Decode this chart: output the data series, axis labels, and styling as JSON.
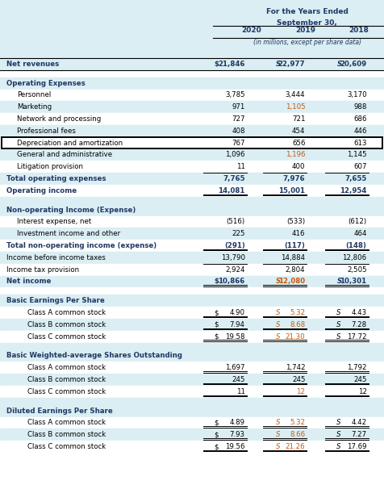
{
  "title_line1": "For the Years Ended",
  "title_line2": "September 30,",
  "subtitle": "(in millions, except per share data)",
  "years": [
    "2020",
    "2019",
    "2018"
  ],
  "bg_blue": "#daeef3",
  "bg_white": "#ffffff",
  "tc_dark": "#1f3864",
  "tc_black": "#000000",
  "tc_orange": "#c55a11",
  "rows": [
    {
      "label": "Net revenues",
      "v0": "$ 21,846",
      "v1": "S  22,977",
      "v2": "S  20,609",
      "bold": true,
      "bg": "blue",
      "indent": 0,
      "box": false,
      "du": false,
      "su": false,
      "spacer": false,
      "sec": false,
      "top_rule": true,
      "bot_rule": true,
      "or1": false,
      "dollar": true,
      "du_cols": []
    },
    {
      "label": "",
      "v0": "",
      "v1": "",
      "v2": "",
      "bold": false,
      "bg": "white",
      "indent": 0,
      "box": false,
      "du": false,
      "su": false,
      "spacer": true,
      "sec": false,
      "top_rule": false,
      "bot_rule": false,
      "or1": false,
      "dollar": false,
      "du_cols": []
    },
    {
      "label": "Operating Expenses",
      "v0": "",
      "v1": "",
      "v2": "",
      "bold": true,
      "bg": "blue",
      "indent": 0,
      "box": false,
      "du": false,
      "su": false,
      "spacer": false,
      "sec": true,
      "top_rule": false,
      "bot_rule": false,
      "or1": false,
      "dollar": false,
      "du_cols": []
    },
    {
      "label": "Personnel",
      "v0": "3,785",
      "v1": "3,444",
      "v2": "3,170",
      "bold": false,
      "bg": "white",
      "indent": 1,
      "box": false,
      "du": false,
      "su": false,
      "spacer": false,
      "sec": false,
      "top_rule": false,
      "bot_rule": false,
      "or1": false,
      "dollar": false,
      "du_cols": []
    },
    {
      "label": "Marketing",
      "v0": "971",
      "v1": "1,105",
      "v2": "988",
      "bold": false,
      "bg": "blue",
      "indent": 1,
      "box": false,
      "du": false,
      "su": false,
      "spacer": false,
      "sec": false,
      "top_rule": false,
      "bot_rule": false,
      "or1": true,
      "dollar": false,
      "du_cols": []
    },
    {
      "label": "Network and processing",
      "v0": "727",
      "v1": "721",
      "v2": "686",
      "bold": false,
      "bg": "white",
      "indent": 1,
      "box": false,
      "du": false,
      "su": false,
      "spacer": false,
      "sec": false,
      "top_rule": false,
      "bot_rule": false,
      "or1": false,
      "dollar": false,
      "du_cols": []
    },
    {
      "label": "Professional fees",
      "v0": "408",
      "v1": "454",
      "v2": "446",
      "bold": false,
      "bg": "blue",
      "indent": 1,
      "box": false,
      "du": false,
      "su": false,
      "spacer": false,
      "sec": false,
      "top_rule": false,
      "bot_rule": false,
      "or1": false,
      "dollar": false,
      "du_cols": []
    },
    {
      "label": "Depreciation and amortization",
      "v0": "767",
      "v1": "656",
      "v2": "613",
      "bold": false,
      "bg": "white",
      "indent": 1,
      "box": true,
      "du": false,
      "su": false,
      "spacer": false,
      "sec": false,
      "top_rule": false,
      "bot_rule": false,
      "or1": false,
      "dollar": false,
      "du_cols": []
    },
    {
      "label": "General and administrative",
      "v0": "1,096",
      "v1": "1,196",
      "v2": "1,145",
      "bold": false,
      "bg": "blue",
      "indent": 1,
      "box": false,
      "du": false,
      "su": false,
      "spacer": false,
      "sec": false,
      "top_rule": false,
      "bot_rule": false,
      "or1": true,
      "dollar": false,
      "du_cols": []
    },
    {
      "label": "Litigation provision",
      "v0": "11",
      "v1": "400",
      "v2": "607",
      "bold": false,
      "bg": "white",
      "indent": 1,
      "box": false,
      "du": false,
      "su": false,
      "spacer": false,
      "sec": false,
      "top_rule": false,
      "bot_rule": false,
      "or1": false,
      "dollar": false,
      "du_cols": []
    },
    {
      "label": "Total operating expenses",
      "v0": "7,765",
      "v1": "7,976",
      "v2": "7,655",
      "bold": true,
      "bg": "blue",
      "indent": 0,
      "box": false,
      "du": false,
      "su": true,
      "spacer": false,
      "sec": false,
      "top_rule": false,
      "bot_rule": false,
      "or1": false,
      "dollar": false,
      "du_cols": []
    },
    {
      "label": "Operating income",
      "v0": "14,081",
      "v1": "15,001",
      "v2": "12,954",
      "bold": true,
      "bg": "white",
      "indent": 0,
      "box": false,
      "du": true,
      "su": false,
      "spacer": false,
      "sec": false,
      "top_rule": false,
      "bot_rule": false,
      "or1": false,
      "dollar": false,
      "du_cols": [
        0,
        1,
        2
      ]
    },
    {
      "label": "",
      "v0": "",
      "v1": "",
      "v2": "",
      "bold": false,
      "bg": "blue",
      "indent": 0,
      "box": false,
      "du": false,
      "su": false,
      "spacer": true,
      "sec": false,
      "top_rule": false,
      "bot_rule": false,
      "or1": false,
      "dollar": false,
      "du_cols": []
    },
    {
      "label": "Non-operating Income (Expense)",
      "v0": "",
      "v1": "",
      "v2": "",
      "bold": true,
      "bg": "blue",
      "indent": 0,
      "box": false,
      "du": false,
      "su": false,
      "spacer": false,
      "sec": true,
      "top_rule": false,
      "bot_rule": false,
      "or1": false,
      "dollar": false,
      "du_cols": []
    },
    {
      "label": "Interest expense, net",
      "v0": "(516)",
      "v1": "(533)",
      "v2": "(612)",
      "bold": false,
      "bg": "white",
      "indent": 1,
      "box": false,
      "du": false,
      "su": false,
      "spacer": false,
      "sec": false,
      "top_rule": false,
      "bot_rule": false,
      "or1": false,
      "dollar": false,
      "du_cols": []
    },
    {
      "label": "Investment income and other",
      "v0": "225",
      "v1": "416",
      "v2": "464",
      "bold": false,
      "bg": "blue",
      "indent": 1,
      "box": false,
      "du": false,
      "su": false,
      "spacer": false,
      "sec": false,
      "top_rule": false,
      "bot_rule": false,
      "or1": false,
      "dollar": false,
      "du_cols": []
    },
    {
      "label": "Total non-operating income (expense)",
      "v0": "(291)",
      "v1": "(117)",
      "v2": "(148)",
      "bold": true,
      "bg": "white",
      "indent": 0,
      "box": false,
      "du": true,
      "su": false,
      "spacer": false,
      "sec": false,
      "top_rule": false,
      "bot_rule": false,
      "or1": false,
      "dollar": false,
      "du_cols": [
        0,
        1,
        2
      ]
    },
    {
      "label": "Income before income taxes",
      "v0": "13,790",
      "v1": "14,884",
      "v2": "12,806",
      "bold": false,
      "bg": "blue",
      "indent": 0,
      "box": false,
      "du": false,
      "su": false,
      "spacer": false,
      "sec": false,
      "top_rule": false,
      "bot_rule": false,
      "or1": false,
      "dollar": false,
      "du_cols": []
    },
    {
      "label": "Income tax provision",
      "v0": "2,924",
      "v1": "2,804",
      "v2": "2,505",
      "bold": false,
      "bg": "white",
      "indent": 0,
      "box": false,
      "du": false,
      "su": true,
      "spacer": false,
      "sec": false,
      "top_rule": false,
      "bot_rule": false,
      "or1": false,
      "dollar": false,
      "du_cols": []
    },
    {
      "label": "Net income",
      "v0": "$ 10,866",
      "v1": "S  12,080",
      "v2": "S  10,301",
      "bold": true,
      "bg": "blue",
      "indent": 0,
      "box": false,
      "du": true,
      "su": false,
      "spacer": false,
      "sec": false,
      "top_rule": false,
      "bot_rule": false,
      "or1": true,
      "dollar": true,
      "du_cols": [
        0,
        1,
        2
      ]
    },
    {
      "label": "",
      "v0": "",
      "v1": "",
      "v2": "",
      "bold": false,
      "bg": "white",
      "indent": 0,
      "box": false,
      "du": false,
      "su": false,
      "spacer": true,
      "sec": false,
      "top_rule": false,
      "bot_rule": false,
      "or1": false,
      "dollar": false,
      "du_cols": []
    },
    {
      "label": "Basic Earnings Per Share",
      "v0": "",
      "v1": "",
      "v2": "",
      "bold": true,
      "bg": "blue",
      "indent": 0,
      "box": false,
      "du": false,
      "su": false,
      "spacer": false,
      "sec": true,
      "top_rule": false,
      "bot_rule": false,
      "or1": false,
      "dollar": false,
      "du_cols": []
    },
    {
      "label": "Class A common stock",
      "v0": "$ 4.90",
      "v1": "S  5.32",
      "v2": "S  4.43",
      "bold": false,
      "bg": "white",
      "indent": 2,
      "box": false,
      "du": true,
      "su": false,
      "spacer": false,
      "sec": false,
      "top_rule": false,
      "bot_rule": false,
      "or1": true,
      "dollar": true,
      "du_cols": [
        0,
        1,
        2
      ]
    },
    {
      "label": "Class B common stock",
      "v0": "$ 7.94",
      "v1": "S  8.68",
      "v2": "S  7.28",
      "bold": false,
      "bg": "blue",
      "indent": 2,
      "box": false,
      "du": true,
      "su": false,
      "spacer": false,
      "sec": false,
      "top_rule": false,
      "bot_rule": false,
      "or1": true,
      "dollar": true,
      "du_cols": [
        0,
        1,
        2
      ]
    },
    {
      "label": "Class C common stock",
      "v0": "$ 19.58",
      "v1": "S  21.30",
      "v2": "S  17.72",
      "bold": false,
      "bg": "white",
      "indent": 2,
      "box": false,
      "du": true,
      "su": false,
      "spacer": false,
      "sec": false,
      "top_rule": false,
      "bot_rule": false,
      "or1": true,
      "dollar": true,
      "du_cols": [
        0,
        1,
        2
      ]
    },
    {
      "label": "",
      "v0": "",
      "v1": "",
      "v2": "",
      "bold": false,
      "bg": "blue",
      "indent": 0,
      "box": false,
      "du": false,
      "su": false,
      "spacer": true,
      "sec": false,
      "top_rule": false,
      "bot_rule": false,
      "or1": false,
      "dollar": false,
      "du_cols": []
    },
    {
      "label": "Basic Weighted-average Shares Outstanding",
      "v0": "",
      "v1": "",
      "v2": "",
      "bold": true,
      "bg": "blue",
      "indent": 0,
      "box": false,
      "du": false,
      "su": false,
      "spacer": false,
      "sec": true,
      "top_rule": false,
      "bot_rule": false,
      "or1": false,
      "dollar": false,
      "du_cols": []
    },
    {
      "label": "Class A common stock",
      "v0": "1,697",
      "v1": "1,742",
      "v2": "1,792",
      "bold": false,
      "bg": "white",
      "indent": 2,
      "box": false,
      "du": true,
      "su": false,
      "spacer": false,
      "sec": false,
      "top_rule": false,
      "bot_rule": false,
      "or1": false,
      "dollar": false,
      "du_cols": [
        0,
        1,
        2
      ]
    },
    {
      "label": "Class B common stock",
      "v0": "245",
      "v1": "245",
      "v2": "245",
      "bold": false,
      "bg": "blue",
      "indent": 2,
      "box": false,
      "du": true,
      "su": false,
      "spacer": false,
      "sec": false,
      "top_rule": false,
      "bot_rule": false,
      "or1": false,
      "dollar": false,
      "du_cols": [
        0,
        1,
        2
      ]
    },
    {
      "label": "Class C common stock",
      "v0": "11",
      "v1": "12",
      "v2": "12",
      "bold": false,
      "bg": "white",
      "indent": 2,
      "box": false,
      "du": true,
      "su": false,
      "spacer": false,
      "sec": false,
      "top_rule": false,
      "bot_rule": false,
      "or1": true,
      "dollar": false,
      "du_cols": [
        0,
        1,
        2
      ]
    },
    {
      "label": "",
      "v0": "",
      "v1": "",
      "v2": "",
      "bold": false,
      "bg": "blue",
      "indent": 0,
      "box": false,
      "du": false,
      "su": false,
      "spacer": true,
      "sec": false,
      "top_rule": false,
      "bot_rule": false,
      "or1": false,
      "dollar": false,
      "du_cols": []
    },
    {
      "label": "Diluted Earnings Per Share",
      "v0": "",
      "v1": "",
      "v2": "",
      "bold": true,
      "bg": "blue",
      "indent": 0,
      "box": false,
      "du": false,
      "su": false,
      "spacer": false,
      "sec": true,
      "top_rule": false,
      "bot_rule": false,
      "or1": false,
      "dollar": false,
      "du_cols": []
    },
    {
      "label": "Class A common stock",
      "v0": "$ 4.89",
      "v1": "S  5.32",
      "v2": "S  4.42",
      "bold": false,
      "bg": "white",
      "indent": 2,
      "box": false,
      "du": true,
      "su": false,
      "spacer": false,
      "sec": false,
      "top_rule": false,
      "bot_rule": false,
      "or1": true,
      "dollar": true,
      "du_cols": [
        0,
        1,
        2
      ]
    },
    {
      "label": "Class B common stock",
      "v0": "$ 7.93",
      "v1": "S  8.66",
      "v2": "S  7.27",
      "bold": false,
      "bg": "blue",
      "indent": 2,
      "box": false,
      "du": true,
      "su": false,
      "spacer": false,
      "sec": false,
      "top_rule": false,
      "bot_rule": false,
      "or1": true,
      "dollar": true,
      "du_cols": [
        0,
        1,
        2
      ]
    },
    {
      "label": "Class C common stock",
      "v0": "$ 19.56",
      "v1": "S  21.26",
      "v2": "S  17.69",
      "bold": false,
      "bg": "white",
      "indent": 2,
      "box": false,
      "du": true,
      "su": false,
      "spacer": false,
      "sec": false,
      "top_rule": false,
      "bot_rule": false,
      "or1": true,
      "dollar": true,
      "du_cols": [
        0,
        1,
        2
      ]
    }
  ]
}
